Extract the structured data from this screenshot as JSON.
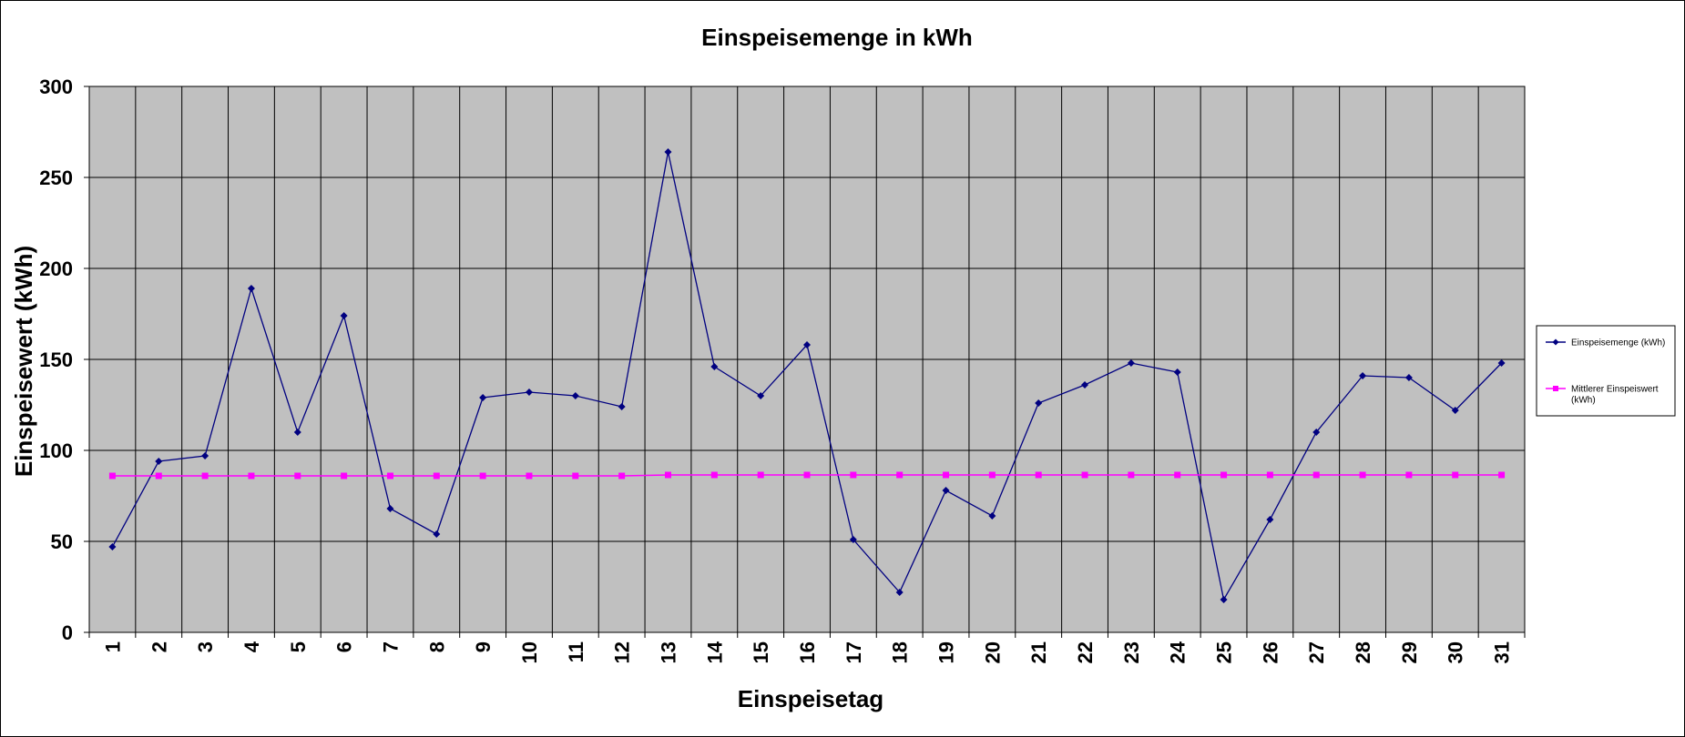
{
  "chart_data": {
    "type": "line",
    "title": "Einspeisemenge in kWh",
    "xlabel": "Einspeisetag",
    "ylabel": "Einspeisewert  (kWh)",
    "ylim": [
      0,
      300
    ],
    "yticks": [
      0,
      50,
      100,
      150,
      200,
      250,
      300
    ],
    "grid": true,
    "legend_position": "right",
    "categories": [
      "1",
      "2",
      "3",
      "4",
      "5",
      "6",
      "7",
      "8",
      "9",
      "10",
      "11",
      "12",
      "13",
      "14",
      "15",
      "16",
      "17",
      "18",
      "19",
      "20",
      "21",
      "22",
      "23",
      "24",
      "25",
      "26",
      "27",
      "28",
      "29",
      "30",
      "31"
    ],
    "series": [
      {
        "name": "Einspeisemenge (kWh)",
        "color": "#000080",
        "marker": "diamond",
        "values": [
          47,
          94,
          97,
          189,
          110,
          174,
          68,
          54,
          129,
          132,
          130,
          124,
          264,
          146,
          130,
          158,
          51,
          22,
          78,
          64,
          126,
          136,
          148,
          143,
          18,
          62,
          110,
          141,
          140,
          122,
          148
        ]
      },
      {
        "name": "Mittlerer Einspeiswert (kWh)",
        "legend_lines": [
          "Mittlerer Einspeiswert",
          "(kWh)"
        ],
        "color": "#ff00ff",
        "marker": "square",
        "values": [
          86,
          86,
          86,
          86,
          86,
          86,
          86,
          86,
          86,
          86,
          86,
          86,
          86.5,
          86.5,
          86.5,
          86.5,
          86.5,
          86.5,
          86.5,
          86.5,
          86.5,
          86.5,
          86.5,
          86.5,
          86.5,
          86.5,
          86.5,
          86.5,
          86.5,
          86.5,
          86.5
        ]
      }
    ],
    "colors": {
      "plot_background": "#c0c0c0",
      "gridline": "#000000"
    }
  }
}
